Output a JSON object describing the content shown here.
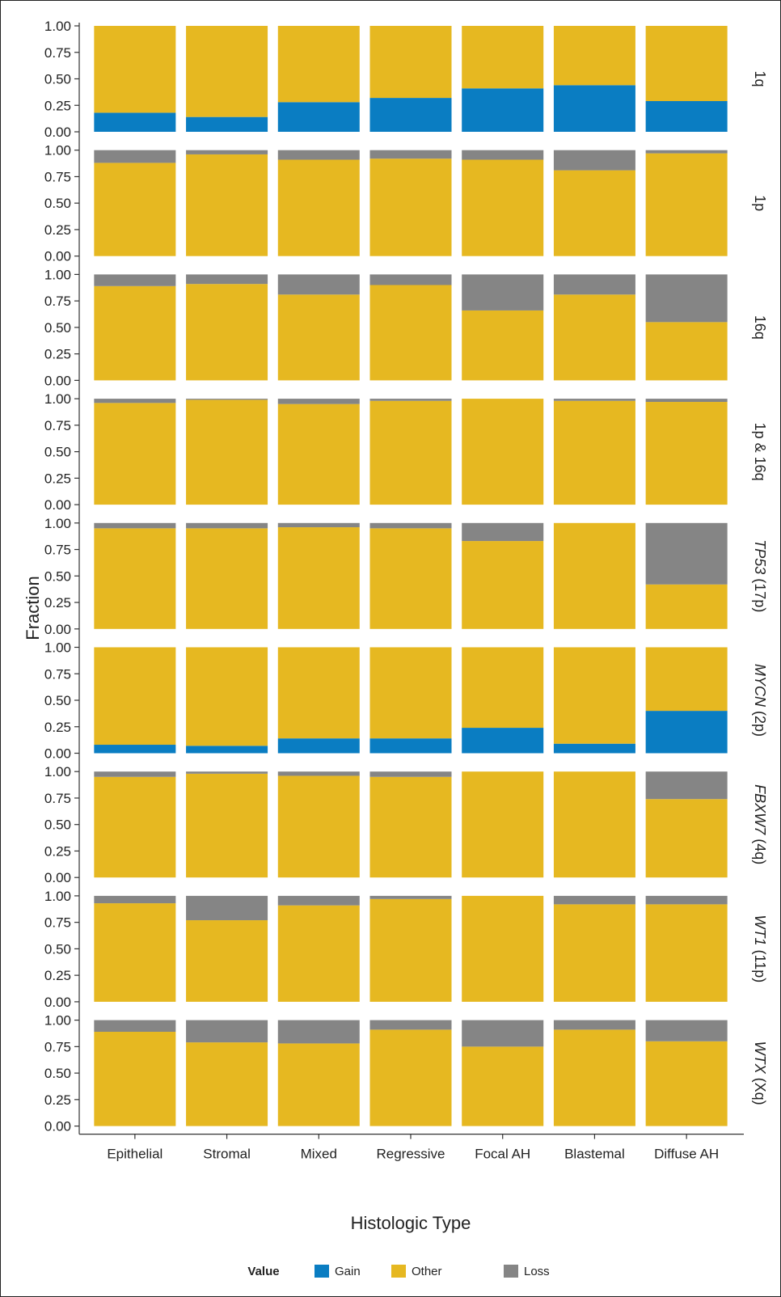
{
  "chart_data": {
    "type": "bar",
    "stacked": true,
    "xlabel": "Histologic Type",
    "ylabel": "Fraction",
    "ylim": [
      0,
      1
    ],
    "yticks": [
      "0.00",
      "0.25",
      "0.50",
      "0.75",
      "1.00"
    ],
    "categories": [
      "Epithelial",
      "Stromal",
      "Mixed",
      "Regressive",
      "Focal AH",
      "Blastemal",
      "Diffuse AH"
    ],
    "legend": {
      "title": "Value",
      "position": "bottom",
      "items": [
        {
          "name": "Gain",
          "color": "#0a7dc2"
        },
        {
          "name": "Other",
          "color": "#e6b821"
        },
        {
          "name": "Loss",
          "color": "#858585"
        }
      ]
    },
    "facets": [
      {
        "label": "1q",
        "italic": false,
        "gain": [
          0.18,
          0.14,
          0.28,
          0.32,
          0.41,
          0.44,
          0.29
        ],
        "loss": [
          0,
          0,
          0,
          0,
          0,
          0,
          0
        ]
      },
      {
        "label": "1p",
        "italic": false,
        "gain": [
          0,
          0,
          0,
          0,
          0,
          0,
          0
        ],
        "loss": [
          0.12,
          0.04,
          0.09,
          0.08,
          0.09,
          0.19,
          0.03
        ]
      },
      {
        "label": "16q",
        "italic": false,
        "gain": [
          0,
          0,
          0,
          0,
          0,
          0,
          0
        ],
        "loss": [
          0.11,
          0.09,
          0.19,
          0.1,
          0.34,
          0.19,
          0.45
        ]
      },
      {
        "label": "1p & 16q",
        "italic": false,
        "gain": [
          0,
          0,
          0,
          0,
          0,
          0,
          0
        ],
        "loss": [
          0.04,
          0.01,
          0.05,
          0.02,
          0,
          0.02,
          0.03
        ]
      },
      {
        "label": "TP53",
        "suffix": " (17p)",
        "italic": true,
        "gain": [
          0,
          0,
          0,
          0,
          0,
          0,
          0
        ],
        "loss": [
          0.05,
          0.05,
          0.04,
          0.05,
          0.17,
          0,
          0.58
        ]
      },
      {
        "label": "MYCN",
        "suffix": " (2p)",
        "italic": true,
        "gain": [
          0.08,
          0.07,
          0.14,
          0.14,
          0.24,
          0.09,
          0.4
        ],
        "loss": [
          0,
          0,
          0,
          0,
          0,
          0,
          0
        ]
      },
      {
        "label": "FBXW7",
        "suffix": " (4q)",
        "italic": true,
        "gain": [
          0,
          0,
          0,
          0,
          0,
          0,
          0
        ],
        "loss": [
          0.05,
          0.02,
          0.04,
          0.05,
          0,
          0,
          0.26
        ]
      },
      {
        "label": "WT1",
        "suffix": " (11p)",
        "italic": true,
        "gain": [
          0,
          0,
          0,
          0,
          0,
          0,
          0
        ],
        "loss": [
          0.07,
          0.23,
          0.09,
          0.03,
          0,
          0.08,
          0.08
        ]
      },
      {
        "label": "WTX",
        "suffix": " (Xq)",
        "italic": true,
        "gain": [
          0,
          0,
          0,
          0,
          0,
          0,
          0
        ],
        "loss": [
          0.11,
          0.21,
          0.22,
          0.09,
          0.25,
          0.09,
          0.2
        ]
      }
    ]
  }
}
